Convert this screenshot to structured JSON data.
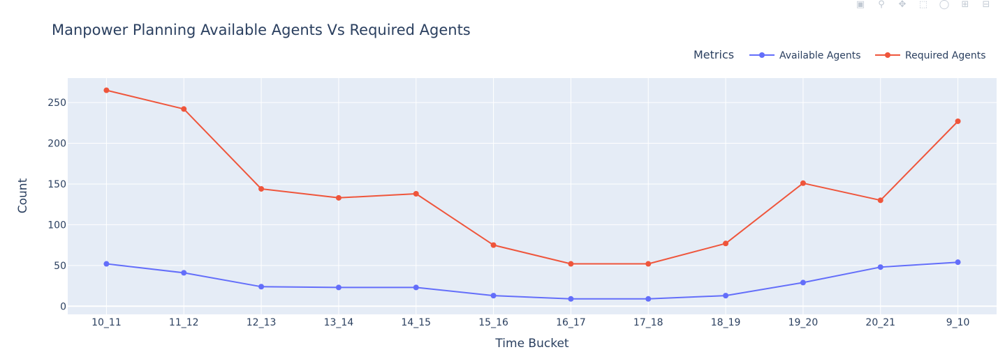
{
  "chart_data": {
    "type": "line",
    "title": "Manpower Planning Available Agents Vs Required Agents",
    "xlabel": "Time Bucket",
    "ylabel": "Count",
    "categories": [
      "10_11",
      "11_12",
      "12_13",
      "13_14",
      "14_15",
      "15_16",
      "16_17",
      "17_18",
      "18_19",
      "19_20",
      "20_21",
      "9_10"
    ],
    "series": [
      {
        "name": "Available Agents",
        "color": "#636efa",
        "values": [
          52,
          41,
          24,
          23,
          23,
          13,
          9,
          9,
          13,
          29,
          48,
          54
        ]
      },
      {
        "name": "Required Agents",
        "color": "#ef553b",
        "values": [
          265,
          242,
          144,
          133,
          138,
          75,
          52,
          52,
          77,
          151,
          130,
          227
        ]
      }
    ],
    "ylim": [
      -10,
      280
    ],
    "yticks": [
      0,
      50,
      100,
      150,
      200,
      250
    ],
    "grid": true,
    "legend": {
      "title": "Metrics",
      "placement": "top-right",
      "orientation": "horizontal"
    },
    "plot_bg": "#e5ecf6"
  },
  "modebar": {
    "icons": [
      "camera-icon",
      "zoom-icon",
      "pan-icon",
      "box-select-icon",
      "lasso-icon",
      "zoom-in-icon",
      "zoom-out-icon"
    ]
  }
}
